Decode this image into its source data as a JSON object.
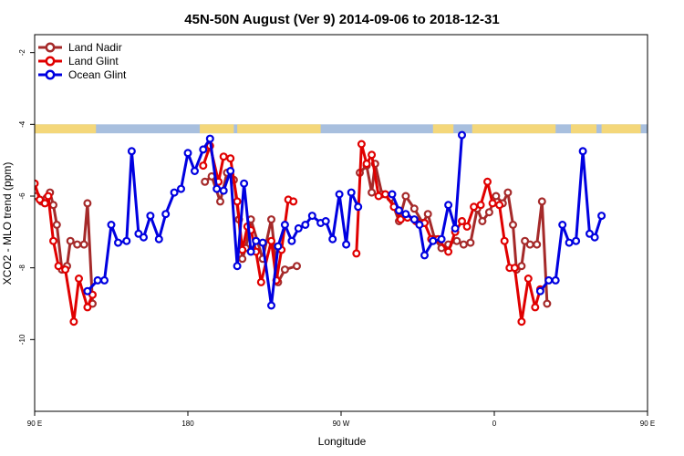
{
  "chart_data": {
    "type": "line",
    "title": "45N-50N August (Ver 9)   2014-09-06 to 2018-12-31",
    "xlabel": "Longitude",
    "ylabel": "XCO2 - MLO trend (ppm)",
    "xlim": [
      90,
      450
    ],
    "ylim": [
      -12,
      -1.5
    ],
    "y_reversed": true,
    "x_ticks": [
      {
        "value": 90,
        "label": "90 E"
      },
      {
        "value": 180,
        "label": "180"
      },
      {
        "value": 270,
        "label": "90 W"
      },
      {
        "value": 360,
        "label": "0"
      },
      {
        "value": 450,
        "label": "90 E"
      },
      {
        "value": 540,
        "label": "180"
      }
    ],
    "y_ticks": [
      -2,
      -4,
      -6,
      -8,
      -10
    ],
    "land_ocean_band": {
      "y_from": -4.0,
      "y_to": -4.25,
      "land_color": "#f4d77a",
      "ocean_color": "#a8bfde"
    },
    "legend_position": "top-left",
    "series": [
      {
        "name": "Land Nadir",
        "color": "#a52a2a",
        "segments": [
          [
            [
              91,
              -6.0
            ],
            [
              94,
              -6.15
            ],
            [
              97,
              -6.05
            ],
            [
              99,
              -5.9
            ],
            [
              101,
              -6.25
            ],
            [
              103,
              -6.8
            ],
            [
              106,
              -8.05
            ],
            [
              109,
              -7.95
            ],
            [
              111,
              -7.25
            ],
            [
              115,
              -7.35
            ],
            [
              119,
              -7.35
            ],
            [
              121,
              -6.2
            ],
            [
              124,
              -9.0
            ]
          ],
          [
            [
              190,
              -5.6
            ],
            [
              194,
              -5.45
            ],
            [
              199,
              -6.15
            ],
            [
              203,
              -5.35
            ],
            [
              207,
              -5.55
            ],
            [
              210,
              -6.65
            ],
            [
              212,
              -7.75
            ],
            [
              214,
              -7.45
            ],
            [
              217,
              -6.65
            ],
            [
              224,
              -7.75
            ],
            [
              229,
              -6.65
            ],
            [
              233,
              -8.4
            ],
            [
              237,
              -8.05
            ],
            [
              244,
              -7.95
            ]
          ],
          [
            [
              281,
              -5.35
            ],
            [
              285,
              -5.15
            ],
            [
              288,
              -5.9
            ],
            [
              290,
              -5.1
            ],
            [
              294,
              -5.95
            ],
            [
              299,
              -6.05
            ],
            [
              304,
              -6.7
            ],
            [
              308,
              -6.0
            ],
            [
              313,
              -6.35
            ],
            [
              318,
              -6.75
            ],
            [
              321,
              -6.5
            ],
            [
              325,
              -7.2
            ],
            [
              329,
              -7.45
            ],
            [
              333,
              -7.35
            ],
            [
              338,
              -7.25
            ],
            [
              342,
              -7.35
            ],
            [
              346,
              -7.3
            ],
            [
              350,
              -6.35
            ],
            [
              353,
              -6.7
            ],
            [
              357,
              -6.45
            ],
            [
              361,
              -6.0
            ],
            [
              365,
              -6.2
            ],
            [
              368,
              -5.9
            ],
            [
              371,
              -6.8
            ],
            [
              373,
              -8.05
            ],
            [
              376,
              -7.95
            ],
            [
              378,
              -7.25
            ],
            [
              381,
              -7.35
            ],
            [
              385,
              -7.35
            ],
            [
              388,
              -6.15
            ],
            [
              391,
              -9.0
            ]
          ]
        ]
      },
      {
        "name": "Land Glint",
        "color": "#e00000",
        "segments": [
          [
            [
              90,
              -5.65
            ],
            [
              93,
              -6.1
            ],
            [
              96,
              -6.2
            ],
            [
              98,
              -6.0
            ],
            [
              101,
              -7.25
            ],
            [
              104,
              -7.95
            ],
            [
              108,
              -8.05
            ],
            [
              113,
              -9.5
            ],
            [
              116,
              -8.3
            ],
            [
              121,
              -9.1
            ],
            [
              124,
              -8.75
            ]
          ],
          [
            [
              189,
              -5.15
            ],
            [
              193,
              -4.6
            ],
            [
              198,
              -5.6
            ],
            [
              201,
              -4.9
            ],
            [
              205,
              -4.95
            ],
            [
              209,
              -6.15
            ],
            [
              212,
              -7.5
            ],
            [
              215,
              -6.85
            ],
            [
              217,
              -6.95
            ],
            [
              220,
              -7.55
            ],
            [
              223,
              -8.4
            ],
            [
              229,
              -7.25
            ],
            [
              232,
              -8.35
            ],
            [
              235,
              -7.5
            ],
            [
              239,
              -6.1
            ],
            [
              242,
              -6.15
            ]
          ],
          [
            [
              279,
              -7.6
            ],
            [
              282,
              -4.55
            ],
            [
              285,
              -5.1
            ],
            [
              288,
              -4.85
            ],
            [
              292,
              -6.0
            ],
            [
              296,
              -5.95
            ],
            [
              301,
              -6.3
            ],
            [
              305,
              -6.65
            ],
            [
              309,
              -6.6
            ],
            [
              314,
              -6.7
            ],
            [
              319,
              -6.75
            ],
            [
              323,
              -7.2
            ],
            [
              327,
              -7.2
            ],
            [
              333,
              -7.55
            ],
            [
              337,
              -7.0
            ],
            [
              341,
              -6.7
            ],
            [
              344,
              -6.85
            ],
            [
              348,
              -6.3
            ],
            [
              352,
              -6.25
            ],
            [
              356,
              -5.6
            ],
            [
              359,
              -6.2
            ],
            [
              363,
              -6.25
            ],
            [
              366,
              -7.25
            ],
            [
              369,
              -8.0
            ],
            [
              372,
              -8.0
            ],
            [
              376,
              -9.5
            ],
            [
              380,
              -8.3
            ],
            [
              384,
              -9.1
            ],
            [
              387,
              -8.6
            ]
          ]
        ]
      },
      {
        "name": "Ocean Glint",
        "color": "#0000e0",
        "segments": [
          [
            [
              121,
              -8.65
            ],
            [
              127,
              -8.35
            ],
            [
              131,
              -8.35
            ],
            [
              135,
              -6.8
            ],
            [
              139,
              -7.3
            ],
            [
              144,
              -7.25
            ],
            [
              147,
              -4.75
            ],
            [
              151,
              -7.05
            ],
            [
              154,
              -7.15
            ],
            [
              158,
              -6.55
            ],
            [
              163,
              -7.2
            ],
            [
              167,
              -6.5
            ],
            [
              172,
              -5.9
            ],
            [
              176,
              -5.8
            ],
            [
              180,
              -4.8
            ],
            [
              184,
              -5.3
            ],
            [
              189,
              -4.7
            ],
            [
              193,
              -4.4
            ],
            [
              197,
              -5.8
            ],
            [
              201,
              -5.85
            ],
            [
              205,
              -5.3
            ],
            [
              209,
              -7.95
            ],
            [
              213,
              -5.65
            ],
            [
              217,
              -7.55
            ],
            [
              220,
              -7.25
            ],
            [
              224,
              -7.3
            ],
            [
              229,
              -9.05
            ],
            [
              233,
              -7.4
            ],
            [
              237,
              -6.8
            ],
            [
              241,
              -7.25
            ],
            [
              245,
              -6.9
            ],
            [
              249,
              -6.8
            ],
            [
              253,
              -6.55
            ],
            [
              258,
              -6.75
            ],
            [
              261,
              -6.7
            ],
            [
              265,
              -7.2
            ],
            [
              269,
              -5.95
            ],
            [
              273,
              -7.35
            ],
            [
              276,
              -5.9
            ],
            [
              280,
              -6.3
            ]
          ],
          [
            [
              300,
              -5.95
            ],
            [
              304,
              -6.4
            ],
            [
              308,
              -6.5
            ],
            [
              313,
              -6.65
            ],
            [
              316,
              -6.8
            ],
            [
              319,
              -7.65
            ],
            [
              324,
              -7.25
            ],
            [
              329,
              -7.2
            ],
            [
              333,
              -6.25
            ],
            [
              337,
              -6.9
            ],
            [
              341,
              -4.3
            ]
          ],
          [
            [
              387,
              -8.65
            ],
            [
              392,
              -8.35
            ],
            [
              396,
              -8.35
            ],
            [
              400,
              -6.8
            ],
            [
              404,
              -7.3
            ],
            [
              408,
              -7.25
            ],
            [
              412,
              -4.75
            ],
            [
              416,
              -7.05
            ],
            [
              419,
              -7.15
            ],
            [
              423,
              -6.55
            ]
          ]
        ]
      }
    ]
  }
}
